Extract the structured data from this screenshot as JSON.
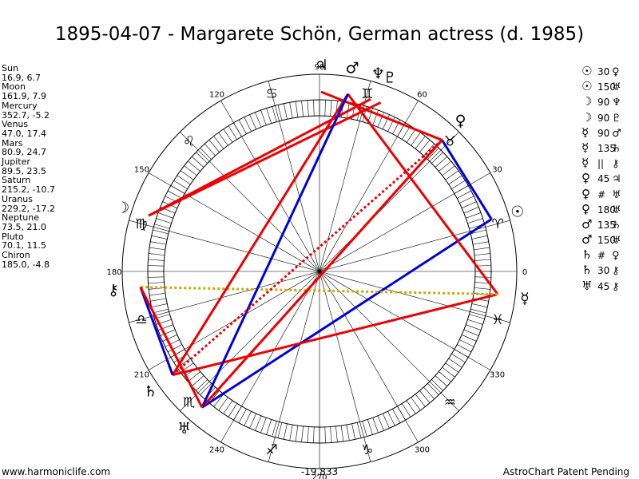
{
  "title": "1895-04-07 - Margarete Schön, German actress (d. 1985)",
  "planets": [
    {
      "name": "Sun",
      "position": "16.9, 6.7",
      "glyph": "☉",
      "lon": 16.9
    },
    {
      "name": "Moon",
      "position": "161.9, 7.9",
      "glyph": "☽",
      "lon": 161.9
    },
    {
      "name": "Mercury",
      "position": "352.7, -5.2",
      "glyph": "☿",
      "lon": 352.7
    },
    {
      "name": "Venus",
      "position": "47.0, 17.4",
      "glyph": "♀",
      "lon": 47.0
    },
    {
      "name": "Mars",
      "position": "80.9, 24.7",
      "glyph": "♂",
      "lon": 80.9
    },
    {
      "name": "Jupiter",
      "position": "89.5, 23.5",
      "glyph": "♃",
      "lon": 89.5
    },
    {
      "name": "Saturn",
      "position": "215.2, -10.7",
      "glyph": "♄",
      "lon": 215.2
    },
    {
      "name": "Uranus",
      "position": "229.2, -17.2",
      "glyph": "♅",
      "lon": 229.2
    },
    {
      "name": "Neptune",
      "position": "73.5, 21.0",
      "glyph": "♆",
      "lon": 73.5
    },
    {
      "name": "Pluto",
      "position": "70.1, 11.5",
      "glyph": "♇",
      "lon": 70.1
    },
    {
      "name": "Chiron",
      "position": "185.0, -4.8",
      "glyph": "⚷",
      "lon": 185.0
    }
  ],
  "aspects": [
    {
      "p1": "☉",
      "angle": "30",
      "p2": "♀",
      "kind": "30",
      "color": "#0000dd"
    },
    {
      "p1": "☉",
      "angle": "150",
      "p2": "♅",
      "kind": "150",
      "color": "#0000dd"
    },
    {
      "p1": "☽",
      "angle": "90",
      "p2": "♆",
      "kind": "90",
      "color": "#ee0000"
    },
    {
      "p1": "☽",
      "angle": "90",
      "p2": "♇",
      "kind": "90",
      "color": "#ee0000"
    },
    {
      "p1": "☿",
      "angle": "90",
      "p2": "♂",
      "kind": "90",
      "color": "#ee0000"
    },
    {
      "p1": "☿",
      "angle": "135",
      "p2": "♄",
      "kind": "135",
      "color": "#ee0000"
    },
    {
      "p1": "☿",
      "angle": "||",
      "p2": "⚷",
      "kind": "parallel",
      "color": "#ccaa00"
    },
    {
      "p1": "♀",
      "angle": "45",
      "p2": "♃",
      "kind": "45",
      "color": "#ee0000"
    },
    {
      "p1": "♀",
      "angle": "#",
      "p2": "♅",
      "kind": "contraparallel",
      "color": "#ee0000"
    },
    {
      "p1": "♀",
      "angle": "180",
      "p2": "♅",
      "kind": "180",
      "color": "#ee0000"
    },
    {
      "p1": "♂",
      "angle": "135",
      "p2": "♄",
      "kind": "135",
      "color": "#ee0000"
    },
    {
      "p1": "♂",
      "angle": "150",
      "p2": "♅",
      "kind": "150",
      "color": "#0000dd"
    },
    {
      "p1": "♄",
      "angle": "#",
      "p2": "♀",
      "kind": "contraparallel",
      "color": "#ee0000"
    },
    {
      "p1": "♄",
      "angle": "30",
      "p2": "⚷",
      "kind": "30",
      "color": "#0000dd"
    },
    {
      "p1": "♅",
      "angle": "45",
      "p2": "⚷",
      "kind": "45",
      "color": "#ee0000"
    }
  ],
  "wheel": {
    "degree_labels": [
      "0",
      "30",
      "60",
      "90",
      "120",
      "150",
      "180",
      "210",
      "240",
      "270",
      "300",
      "330"
    ],
    "zodiac_glyphs": [
      "♈",
      "♉",
      "♊",
      "♋",
      "♌",
      "♍",
      "♎",
      "♏",
      "♐",
      "♑",
      "♒",
      "♓"
    ],
    "ring_colors": {
      "outer": "#000000",
      "ticks": "#000000"
    }
  },
  "footer": {
    "site": "www.harmoniclife.com",
    "value": "-19,833",
    "patent": "AstroChart Patent Pending"
  }
}
